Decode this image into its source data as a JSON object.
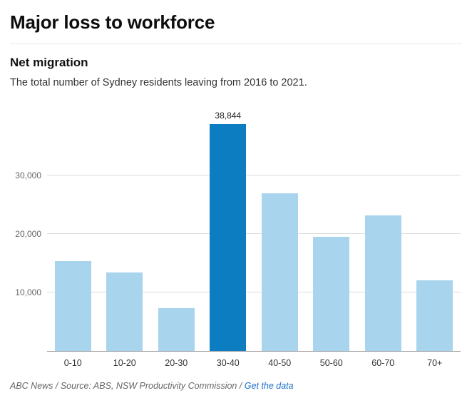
{
  "header": {
    "title": "Major loss to workforce"
  },
  "chart": {
    "subtitle": "Net migration",
    "description": "The total number of Sydney residents leaving from 2016 to 2021."
  },
  "chart_data": {
    "type": "bar",
    "title": "Net migration",
    "subtitle": "The total number of Sydney residents leaving from 2016 to 2021.",
    "categories": [
      "0-10",
      "10-20",
      "20-30",
      "30-40",
      "40-50",
      "50-60",
      "60-70",
      "70+"
    ],
    "values": [
      15400,
      13400,
      7300,
      38844,
      27000,
      19500,
      23200,
      12100
    ],
    "highlight_index": 3,
    "highlight_category": "30-40",
    "value_labels": {
      "3": "38,844"
    },
    "xlabel": "",
    "ylabel": "",
    "ylim": [
      0,
      43000
    ],
    "yticks": [
      {
        "value": 10000,
        "label": "10,000"
      },
      {
        "value": 20000,
        "label": "20,000"
      },
      {
        "value": 30000,
        "label": "30,000"
      }
    ],
    "grid": true,
    "legend": false,
    "colors": {
      "bar": "#a9d4ee",
      "highlight": "#0d7dc2",
      "gridline": "#dcdcdc",
      "axis": "#9a9a9a"
    }
  },
  "footer": {
    "credit": "ABC News / Source: ABS, NSW Productivity Commission / ",
    "link": "Get the data"
  }
}
